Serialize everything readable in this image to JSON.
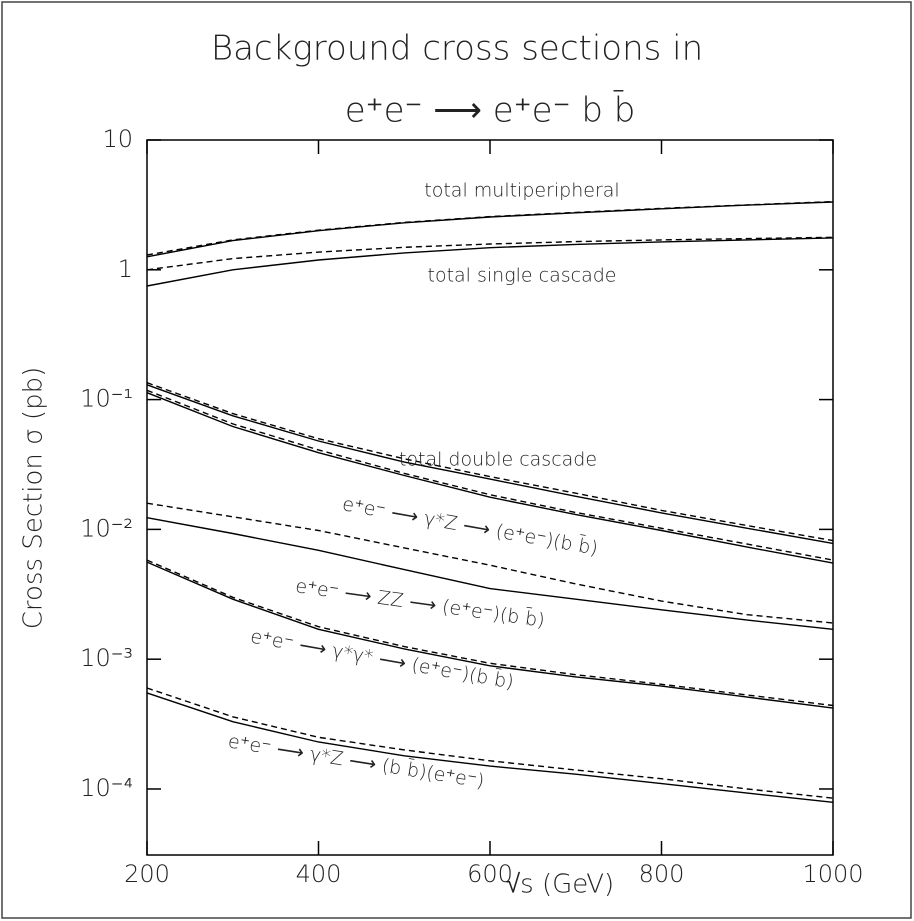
{
  "chart_data": {
    "type": "line",
    "title": "Background cross sections in",
    "subtitle": "e⁺e⁻ ⟶ e⁺e⁻  b b̄",
    "x_label": "√s (GeV)",
    "y_label": "Cross Section σ (pb)",
    "x": [
      200,
      300,
      400,
      500,
      600,
      700,
      800,
      900,
      1000
    ],
    "xlim": [
      200,
      1000
    ],
    "xticks": [
      200,
      400,
      600,
      800,
      1000
    ],
    "ylim": [
      3.1e-05,
      10
    ],
    "log_y": true,
    "yticks": [
      {
        "value": 0.0001,
        "label": "10⁻⁴"
      },
      {
        "value": 0.001,
        "label": "10⁻³"
      },
      {
        "value": 0.01,
        "label": "10⁻²"
      },
      {
        "value": 0.1,
        "label": "10⁻¹"
      },
      1,
      10
    ],
    "grid": false,
    "series": [
      {
        "color": "#000000",
        "dashed": false,
        "values": [
          1.26,
          1.68,
          2.0,
          2.3,
          2.55,
          2.75,
          2.95,
          3.15,
          3.33
        ]
      },
      {
        "color": "#000000",
        "dashed": true,
        "values": [
          1.3,
          1.7,
          2.02,
          2.32,
          2.57,
          2.77,
          2.97,
          3.16,
          3.35
        ]
      },
      {
        "color": "#000000",
        "dashed": false,
        "values": [
          0.75,
          1.0,
          1.19,
          1.35,
          1.48,
          1.57,
          1.64,
          1.7,
          1.76
        ]
      },
      {
        "color": "#000000",
        "dashed": true,
        "values": [
          1.0,
          1.22,
          1.37,
          1.49,
          1.58,
          1.65,
          1.7,
          1.74,
          1.78
        ]
      },
      {
        "color": "#000000",
        "dashed": false,
        "values": [
          0.13,
          0.075,
          0.048,
          0.033,
          0.0244,
          0.018,
          0.0134,
          0.0102,
          0.0078
        ]
      },
      {
        "color": "#000000",
        "dashed": true,
        "values": [
          0.135,
          0.078,
          0.05,
          0.035,
          0.0255,
          0.019,
          0.014,
          0.0107,
          0.0082
        ]
      },
      {
        "color": "#000000",
        "dashed": false,
        "values": [
          0.113,
          0.062,
          0.039,
          0.026,
          0.0177,
          0.013,
          0.0098,
          0.0073,
          0.0055
        ]
      },
      {
        "color": "#000000",
        "dashed": true,
        "values": [
          0.118,
          0.065,
          0.041,
          0.027,
          0.0185,
          0.0135,
          0.0102,
          0.0077,
          0.0058
        ]
      },
      {
        "color": "#000000",
        "dashed": false,
        "values": [
          0.0123,
          0.0093,
          0.0069,
          0.0049,
          0.0035,
          0.0029,
          0.0024,
          0.002,
          0.0017
        ]
      },
      {
        "color": "#000000",
        "dashed": true,
        "values": [
          0.0159,
          0.0125,
          0.0098,
          0.0072,
          0.0053,
          0.0038,
          0.0028,
          0.0022,
          0.0019
        ]
      },
      {
        "color": "#000000",
        "dashed": false,
        "values": [
          0.0056,
          0.0029,
          0.0017,
          0.0012,
          0.00089,
          0.00073,
          0.00062,
          0.00051,
          0.00042
        ]
      },
      {
        "color": "#000000",
        "dashed": true,
        "values": [
          0.0058,
          0.003,
          0.00178,
          0.00125,
          0.00093,
          0.00076,
          0.00064,
          0.00053,
          0.00044
        ]
      },
      {
        "color": "#000000",
        "dashed": false,
        "values": [
          0.00055,
          0.00033,
          0.00023,
          0.00018,
          0.00015,
          0.00013,
          0.00011,
          9.3e-05,
          7.9e-05
        ]
      },
      {
        "color": "#000000",
        "dashed": true,
        "values": [
          0.0006,
          0.00036,
          0.00025,
          0.0002,
          0.000165,
          0.00014,
          0.00012,
          0.0001,
          8.5e-05
        ]
      }
    ],
    "annotations": [
      "total multiperipheral",
      "total single cascade",
      "total double cascade",
      "e⁺e⁻ ⟶ γ*Z ⟶ (e⁺e⁻)(b b̄)",
      "e⁺e⁻ ⟶ ZZ ⟶ (e⁺e⁻)(b b̄)",
      "e⁺e⁻ ⟶ γ*γ* ⟶ (e⁺e⁻)(b b̄)",
      "e⁺e⁻ ⟶ γ*Z ⟶ (b b̄)(e⁺e⁻)"
    ]
  }
}
